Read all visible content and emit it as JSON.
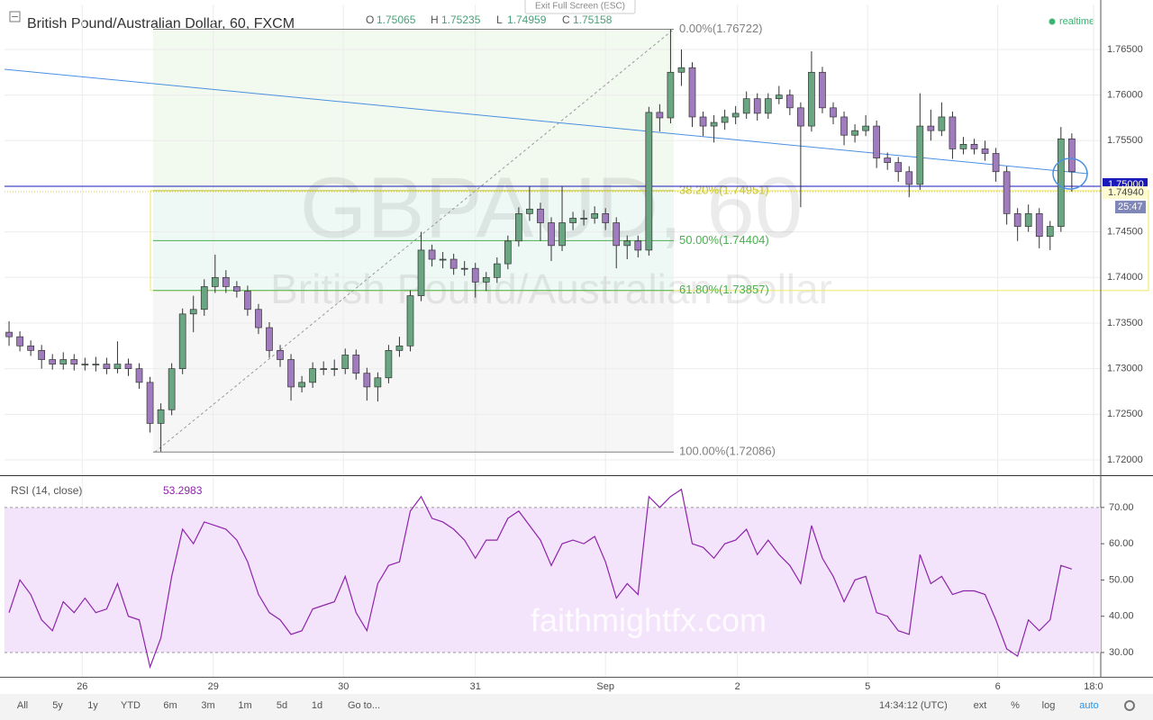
{
  "exit_button": "Exit Full Screen (ESC)",
  "status": "realtime",
  "toolbar": {
    "ranges": [
      "All",
      "5y",
      "1y",
      "YTD",
      "6m",
      "3m",
      "1m",
      "5d",
      "1d",
      "Go to..."
    ],
    "clock": "14:34:12 (UTC)",
    "options": [
      "ext",
      "%",
      "log",
      "auto"
    ]
  },
  "chart_data": [
    {
      "type": "candlestick",
      "title": "British Pound/Australian Dollar, 60, FXCM",
      "legend": [
        {
          "label": "O",
          "value": 1.75065
        },
        {
          "label": "H",
          "value": 1.75235
        },
        {
          "label": "L",
          "value": 1.74959
        },
        {
          "label": "C",
          "value": 1.75158
        }
      ],
      "watermark": "GBPAUD, 60",
      "watermark_subtitle": "British Pound/Australian Dollar",
      "up_color": "#6aa682",
      "down_color": "#a07cbe",
      "grid": true,
      "open": [
        1.734,
        1.7335,
        1.7325,
        1.732,
        1.731,
        1.7305,
        1.731,
        1.7305,
        1.7305,
        1.7305,
        1.73,
        1.7305,
        1.73,
        1.7285,
        1.724,
        1.7255,
        1.73,
        1.736,
        1.7365,
        1.739,
        1.74,
        1.739,
        1.7385,
        1.7365,
        1.7345,
        1.732,
        1.731,
        1.728,
        1.7285,
        1.73,
        1.73,
        1.73,
        1.7315,
        1.7295,
        1.728,
        1.729,
        1.732,
        1.7325,
        1.738,
        1.743,
        1.742,
        1.742,
        1.741,
        1.741,
        1.7395,
        1.74,
        1.7415,
        1.744,
        1.747,
        1.7475,
        1.746,
        1.7435,
        1.746,
        1.7465,
        1.7465,
        1.747,
        1.746,
        1.7435,
        1.744,
        1.743,
        1.7581,
        1.7575,
        1.7625,
        1.763,
        1.7576,
        1.7566,
        1.757,
        1.7576,
        1.758,
        1.7596,
        1.758,
        1.7596,
        1.76,
        1.7586,
        1.7566,
        1.7625,
        1.7586,
        1.7576,
        1.7556,
        1.7561,
        1.7566,
        1.7531,
        1.7526,
        1.7516,
        1.7502,
        1.7566,
        1.7561,
        1.7576,
        1.7541,
        1.7546,
        1.7541,
        1.7536,
        1.7516,
        1.747,
        1.7456,
        1.747,
        1.7445,
        1.7456,
        1.7552
      ],
      "high": [
        1.7352,
        1.7341,
        1.7331,
        1.7326,
        1.7316,
        1.7318,
        1.7316,
        1.7312,
        1.7313,
        1.7312,
        1.733,
        1.7311,
        1.7306,
        1.7291,
        1.7262,
        1.7306,
        1.7366,
        1.738,
        1.7398,
        1.7425,
        1.7408,
        1.7396,
        1.7391,
        1.7371,
        1.7351,
        1.7326,
        1.7316,
        1.7292,
        1.7307,
        1.7308,
        1.731,
        1.7322,
        1.7321,
        1.7301,
        1.7296,
        1.7326,
        1.7335,
        1.7386,
        1.745,
        1.7436,
        1.7428,
        1.7426,
        1.7418,
        1.7416,
        1.7406,
        1.7422,
        1.7446,
        1.7477,
        1.75,
        1.7482,
        1.7466,
        1.75,
        1.7472,
        1.7474,
        1.7478,
        1.7476,
        1.7466,
        1.7446,
        1.7446,
        1.7587,
        1.759,
        1.7672,
        1.765,
        1.7636,
        1.7582,
        1.7578,
        1.7584,
        1.7588,
        1.7604,
        1.7602,
        1.7602,
        1.761,
        1.7606,
        1.7592,
        1.7648,
        1.7631,
        1.7592,
        1.7582,
        1.7568,
        1.7578,
        1.7572,
        1.7537,
        1.7532,
        1.7522,
        1.7602,
        1.7584,
        1.7592,
        1.7582,
        1.7554,
        1.7552,
        1.755,
        1.7542,
        1.7522,
        1.7476,
        1.748,
        1.7476,
        1.7462,
        1.7565,
        1.7558
      ],
      "low": [
        1.7325,
        1.7319,
        1.7314,
        1.73,
        1.7299,
        1.7299,
        1.7298,
        1.7298,
        1.7297,
        1.7294,
        1.7295,
        1.7292,
        1.7278,
        1.723,
        1.7209,
        1.7249,
        1.7294,
        1.734,
        1.7358,
        1.7383,
        1.7383,
        1.7378,
        1.7358,
        1.7338,
        1.7312,
        1.7302,
        1.7265,
        1.7274,
        1.7279,
        1.7293,
        1.7292,
        1.7294,
        1.7288,
        1.7265,
        1.7264,
        1.7284,
        1.7313,
        1.7319,
        1.7374,
        1.7412,
        1.741,
        1.7403,
        1.7402,
        1.7378,
        1.7385,
        1.7394,
        1.7409,
        1.7434,
        1.7462,
        1.744,
        1.7418,
        1.7429,
        1.7452,
        1.7457,
        1.7459,
        1.7452,
        1.741,
        1.742,
        1.7422,
        1.7424,
        1.756,
        1.7569,
        1.761,
        1.7565,
        1.7555,
        1.7548,
        1.7562,
        1.7568,
        1.7574,
        1.7572,
        1.7574,
        1.759,
        1.7578,
        1.7477,
        1.756,
        1.758,
        1.7568,
        1.7545,
        1.7548,
        1.7555,
        1.752,
        1.7518,
        1.7505,
        1.7488,
        1.7496,
        1.755,
        1.7555,
        1.753,
        1.7535,
        1.7535,
        1.7528,
        1.7505,
        1.7458,
        1.744,
        1.745,
        1.7432,
        1.743,
        1.745,
        1.7494
      ],
      "close": [
        1.7335,
        1.7325,
        1.732,
        1.731,
        1.7305,
        1.731,
        1.7305,
        1.7305,
        1.7305,
        1.73,
        1.7305,
        1.73,
        1.7285,
        1.724,
        1.7255,
        1.73,
        1.736,
        1.7365,
        1.739,
        1.74,
        1.739,
        1.7385,
        1.7365,
        1.7345,
        1.732,
        1.731,
        1.728,
        1.7285,
        1.73,
        1.73,
        1.73,
        1.7315,
        1.7295,
        1.728,
        1.729,
        1.732,
        1.7325,
        1.738,
        1.743,
        1.742,
        1.742,
        1.741,
        1.741,
        1.7395,
        1.74,
        1.7415,
        1.744,
        1.747,
        1.7475,
        1.746,
        1.7435,
        1.746,
        1.7465,
        1.7465,
        1.747,
        1.746,
        1.7435,
        1.744,
        1.743,
        1.7581,
        1.7575,
        1.7625,
        1.763,
        1.7576,
        1.7566,
        1.757,
        1.7576,
        1.758,
        1.7596,
        1.758,
        1.7596,
        1.76,
        1.7586,
        1.7566,
        1.7625,
        1.7586,
        1.7576,
        1.7556,
        1.7561,
        1.7566,
        1.7531,
        1.7526,
        1.7516,
        1.7502,
        1.7566,
        1.7561,
        1.7576,
        1.7541,
        1.7546,
        1.7541,
        1.7536,
        1.7516,
        1.747,
        1.7456,
        1.747,
        1.7445,
        1.7456,
        1.7552,
        1.7516
      ],
      "xlim": [
        -0.42,
        100.67
      ],
      "xticks": [
        {
          "value": 6.75,
          "label": "26"
        },
        {
          "value": 18.83,
          "label": "29"
        },
        {
          "value": 30.83,
          "label": "30"
        },
        {
          "value": 43,
          "label": "31"
        },
        {
          "value": 55,
          "label": "Sep"
        },
        {
          "value": 67.17,
          "label": "2"
        },
        {
          "value": 79.17,
          "label": "5"
        },
        {
          "value": 91.17,
          "label": "6"
        },
        {
          "value": 100,
          "label": "18:0"
        }
      ],
      "ylim": [
        1.71842,
        1.76993
      ],
      "yticks": [
        {
          "value": 1.72,
          "label": "1.72000"
        },
        {
          "value": 1.725,
          "label": "1.72500"
        },
        {
          "value": 1.73,
          "label": "1.73000"
        },
        {
          "value": 1.735,
          "label": "1.73500"
        },
        {
          "value": 1.74,
          "label": "1.74000"
        },
        {
          "value": 1.745,
          "label": "1.74500"
        },
        {
          "value": 1.75,
          "label": "1.75000"
        },
        {
          "value": 1.755,
          "label": "1.75500"
        },
        {
          "value": 1.76,
          "label": "1.76000"
        },
        {
          "value": 1.765,
          "label": "1.76500"
        }
      ],
      "fib_levels": [
        {
          "value": 1.76722,
          "label": "0.00%(1.76722)",
          "color": "#808080"
        },
        {
          "value": 1.74951,
          "label": "38.20%(1.74951)",
          "color": "#c7c43c"
        },
        {
          "value": 1.74404,
          "label": "50.00%(1.74404)",
          "color": "#4caf50"
        },
        {
          "value": 1.73857,
          "label": "61.80%(1.73857)",
          "color": "#4caf50"
        },
        {
          "value": 1.72086,
          "label": "100.00%(1.72086)",
          "color": "#808080"
        }
      ],
      "price_markers": [
        {
          "value": 1.75,
          "label": "1.75000",
          "color": "#1a1ab8"
        },
        {
          "value": 1.7494,
          "label": "1.74940",
          "color": "#d8c84a"
        }
      ],
      "countdown": "25:47"
    },
    {
      "type": "line",
      "title": "RSI (14, close)",
      "last_value": 53.2983,
      "color": "#8e24aa",
      "band": [
        30,
        70
      ],
      "band_color": "#f3e3fb",
      "watermark": "faithmightfx.com",
      "values": [
        41,
        50,
        46,
        39,
        36,
        44,
        41,
        45,
        41,
        42,
        49,
        40,
        39,
        26,
        34,
        51,
        64,
        60,
        66,
        65,
        64,
        61,
        55,
        46,
        41,
        39,
        35,
        36,
        42,
        43,
        44,
        51,
        41,
        36,
        49,
        54,
        55,
        69,
        73,
        67,
        66,
        64,
        61,
        56,
        61,
        61,
        67,
        69,
        65,
        61,
        54,
        60,
        61,
        60,
        62,
        55,
        45,
        49,
        46,
        73,
        70,
        73,
        75,
        60,
        59,
        56,
        60,
        61,
        64,
        57,
        61,
        57,
        54,
        49,
        65,
        56,
        51,
        44,
        50,
        51,
        41,
        40,
        36,
        35,
        57,
        49,
        51,
        46,
        47,
        47,
        46,
        39,
        31,
        29,
        39,
        36,
        39,
        54,
        53
      ],
      "ylim": [
        23.3,
        78.4
      ],
      "yticks": [
        {
          "value": 30,
          "label": "30.00"
        },
        {
          "value": 40,
          "label": "40.00"
        },
        {
          "value": 50,
          "label": "50.00"
        },
        {
          "value": 60,
          "label": "60.00"
        },
        {
          "value": 70,
          "label": "70.00"
        }
      ]
    }
  ]
}
